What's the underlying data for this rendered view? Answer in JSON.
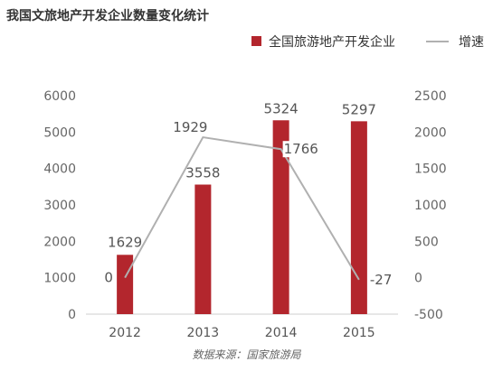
{
  "chart_data": {
    "type": "bar",
    "title": "我国文旅地产开发企业数量变化统计",
    "source": "数据来源：国家旅游局",
    "categories": [
      "2012",
      "2013",
      "2014",
      "2015"
    ],
    "series": [
      {
        "name": "全国旅游地产开发企业",
        "type": "bar",
        "axis": "left",
        "values": [
          1629,
          3558,
          5324,
          5297
        ],
        "labels": [
          "1629",
          "3558",
          "5324",
          "5297"
        ],
        "color": "#b3262d"
      },
      {
        "name": "增速",
        "type": "line",
        "axis": "right",
        "values": [
          0,
          1929,
          1766,
          -27
        ],
        "labels": [
          "0",
          "1929",
          "1766",
          "-27"
        ],
        "color": "#b0b0b0"
      }
    ],
    "y_left": {
      "min": 0,
      "max": 6000,
      "ticks": [
        "0",
        "1000",
        "2000",
        "3000",
        "4000",
        "5000",
        "6000"
      ],
      "tick_values": [
        0,
        1000,
        2000,
        3000,
        4000,
        5000,
        6000
      ]
    },
    "y_right": {
      "min": -500,
      "max": 2500,
      "ticks": [
        "-500",
        "0",
        "500",
        "1000",
        "1500",
        "2000",
        "2500"
      ],
      "tick_values": [
        -500,
        0,
        500,
        1000,
        1500,
        2000,
        2500
      ]
    },
    "xlabel": "",
    "ylabel": "",
    "grid": false,
    "legend": "top-right"
  }
}
